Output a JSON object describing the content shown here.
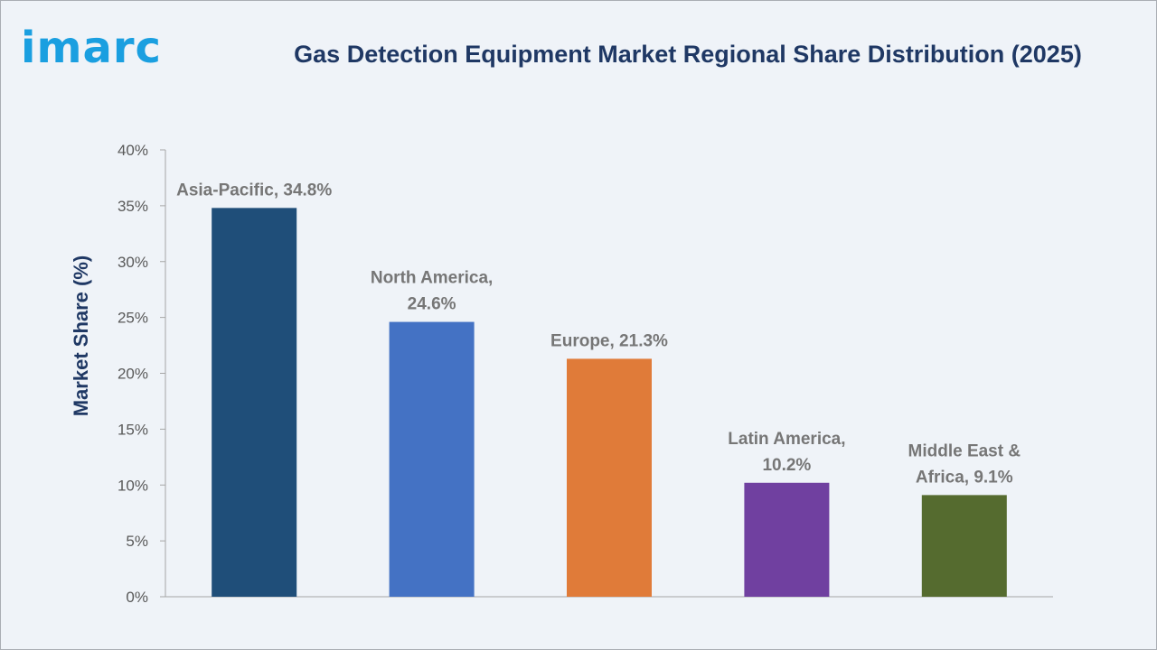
{
  "brand": {
    "logo_text": "imarc"
  },
  "chart_data": {
    "type": "bar",
    "title": "Gas Detection Equipment Market Regional Share Distribution (2025)",
    "xlabel": "",
    "ylabel": "Market Share (%)",
    "ylim": [
      0,
      40
    ],
    "yticks": [
      "0%",
      "5%",
      "10%",
      "15%",
      "20%",
      "25%",
      "30%",
      "35%",
      "40%"
    ],
    "ytick_values": [
      0,
      5,
      10,
      15,
      20,
      25,
      30,
      35,
      40
    ],
    "grid": false,
    "legend": "none",
    "categories": [
      "Asia-Pacific",
      "North America",
      "Europe",
      "Latin America",
      "Middle East & Africa"
    ],
    "values": [
      34.8,
      24.6,
      21.3,
      10.2,
      9.1
    ],
    "data_labels": [
      [
        "Asia-Pacific, 34.8%"
      ],
      [
        "North America,",
        "24.6%"
      ],
      [
        "Europe, 21.3%"
      ],
      [
        "Latin America,",
        "10.2%"
      ],
      [
        "Middle East &",
        "Africa, 9.1%"
      ]
    ],
    "colors": [
      "#1f4e79",
      "#4472c4",
      "#e07b39",
      "#7040a0",
      "#556b2f"
    ]
  }
}
